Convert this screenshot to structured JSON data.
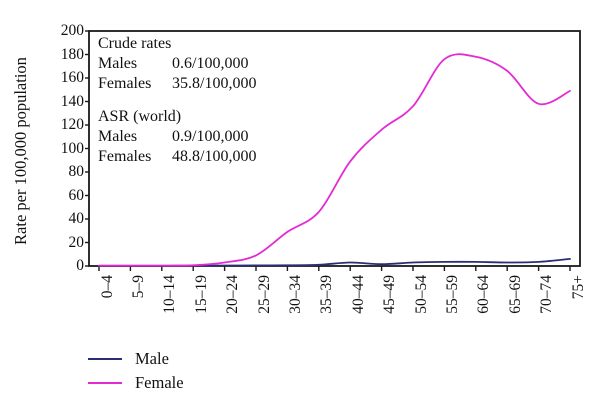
{
  "chart_data": {
    "type": "line",
    "title": "",
    "ylabel": "Rate per 100,000 population",
    "xlabel": "",
    "ylim": [
      0,
      200
    ],
    "yticks": [
      0,
      20,
      40,
      60,
      80,
      100,
      120,
      140,
      160,
      180,
      200
    ],
    "grid": false,
    "legend_position": "bottom-left",
    "categories": [
      "0–4",
      "5–9",
      "10–14",
      "15–19",
      "20–24",
      "25–29",
      "30–34",
      "35–39",
      "40–44",
      "45–49",
      "50–54",
      "55–59",
      "60–64",
      "65–69",
      "70–74",
      "75+"
    ],
    "series": [
      {
        "name": "Male",
        "color": "#2a2f75",
        "values": [
          0.2,
          0.2,
          0.2,
          0.3,
          0.4,
          0.5,
          0.6,
          1.0,
          3.0,
          1.5,
          3.0,
          3.5,
          3.5,
          3.0,
          3.5,
          6.0
        ]
      },
      {
        "name": "Female",
        "color": "#e32bd3",
        "values": [
          0.3,
          0.3,
          0.3,
          0.6,
          3.0,
          9.0,
          29.0,
          46.0,
          89.0,
          116.0,
          136.0,
          176.0,
          178.0,
          166.0,
          138.0,
          149.0
        ]
      }
    ],
    "annotations": {
      "crude": {
        "title": "Crude rates",
        "rows": [
          {
            "label": "Males",
            "value": "0.6/100,000"
          },
          {
            "label": "Females",
            "value": "35.8/100,000"
          }
        ]
      },
      "asr": {
        "title": "ASR (world)",
        "rows": [
          {
            "label": "Males",
            "value": "0.9/100,000"
          },
          {
            "label": "Females",
            "value": "48.8/100,000"
          }
        ]
      }
    },
    "axis_color": "#1a1a1a"
  }
}
